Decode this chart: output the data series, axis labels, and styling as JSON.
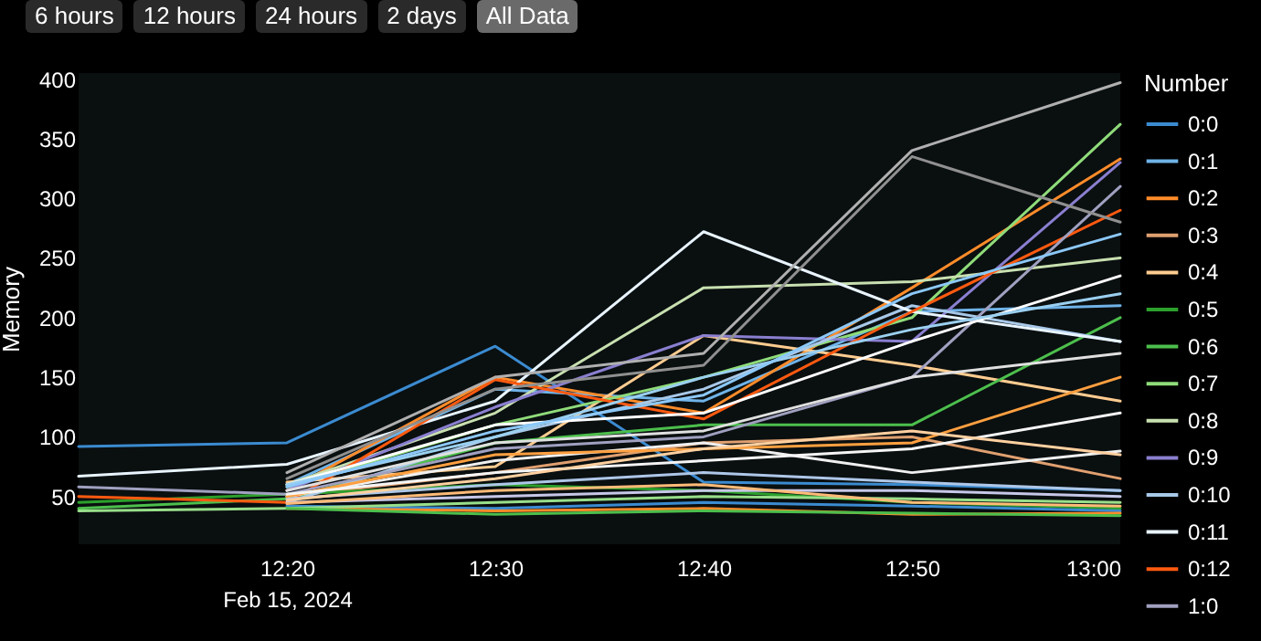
{
  "chart_data": {
    "type": "line",
    "ylabel": "Memory",
    "legend_title": "Number",
    "legend": "right",
    "grid": false,
    "annotations": [
      "6 hours",
      "12 hours",
      "24 hours",
      "2 days",
      "All Data"
    ],
    "x": [
      "2024-02-15T12:10",
      "2024-02-15T12:20",
      "2024-02-15T12:30",
      "2024-02-15T12:40",
      "2024-02-15T12:50",
      "2024-02-15T13:00"
    ],
    "xlim": [
      "2024-02-15T12:10",
      "2024-02-15T13:00"
    ],
    "xticks": [
      {
        "value": "2024-02-15T12:20",
        "label": "12:20\nFeb 15, 2024"
      },
      {
        "value": "2024-02-15T12:30",
        "label": "12:30"
      },
      {
        "value": "2024-02-15T12:40",
        "label": "12:40"
      },
      {
        "value": "2024-02-15T12:50",
        "label": "12:50"
      },
      {
        "value": "2024-02-15T13:00",
        "label": "13:00"
      }
    ],
    "ylim": [
      10,
      405
    ],
    "yticks": [
      50,
      100,
      150,
      200,
      250,
      300,
      350,
      400
    ],
    "series": [
      {
        "name": "0:0",
        "color": "#3b8bd0",
        "values": [
          92,
          95,
          176,
          62,
          60,
          55
        ]
      },
      {
        "name": "0:1",
        "color": "#6fb3e8",
        "values": [
          null,
          60,
          140,
          130,
          205,
          210
        ]
      },
      {
        "name": "0:2",
        "color": "#ff8c2a",
        "values": [
          null,
          55,
          150,
          120,
          225,
          333
        ]
      },
      {
        "name": "0:3",
        "color": "#e0a070",
        "values": [
          null,
          50,
          70,
          95,
          100,
          65
        ]
      },
      {
        "name": "0:4",
        "color": "#ffcc90",
        "values": [
          null,
          62,
          75,
          185,
          160,
          130
        ]
      },
      {
        "name": "0:5",
        "color": "#2ca02c",
        "values": [
          45,
          52,
          60,
          55,
          45,
          40
        ]
      },
      {
        "name": "0:6",
        "color": "#4cbf4c",
        "values": [
          40,
          48,
          95,
          110,
          110,
          200
        ]
      },
      {
        "name": "0:7",
        "color": "#8fdc7a",
        "values": [
          null,
          58,
          110,
          150,
          200,
          362
        ]
      },
      {
        "name": "0:8",
        "color": "#c8e0b0",
        "values": [
          null,
          60,
          120,
          225,
          230,
          250
        ]
      },
      {
        "name": "0:9",
        "color": "#8a7fd0",
        "values": [
          null,
          55,
          125,
          185,
          180,
          330
        ]
      },
      {
        "name": "0:10",
        "color": "#a8c8e8",
        "values": [
          null,
          45,
          100,
          140,
          210,
          180
        ]
      },
      {
        "name": "0:11",
        "color": "#e8f4ff",
        "values": [
          67,
          77,
          130,
          272,
          205,
          180
        ]
      },
      {
        "name": "0:12",
        "color": "#ff5a10",
        "values": [
          50,
          45,
          148,
          115,
          205,
          290
        ]
      },
      {
        "name": "1:0",
        "color": "#a0a0c0",
        "values": [
          58,
          52,
          90,
          100,
          150,
          310
        ]
      },
      {
        "color": "#b0b0b0",
        "values": [
          null,
          70,
          150,
          170,
          340,
          397
        ]
      },
      {
        "color": "#909090",
        "values": [
          null,
          65,
          140,
          160,
          335,
          280
        ]
      },
      {
        "color": "#ffffff",
        "values": [
          null,
          60,
          110,
          120,
          180,
          235
        ]
      },
      {
        "color": "#f0f0f0",
        "values": [
          null,
          50,
          80,
          95,
          70,
          88
        ]
      },
      {
        "color": "#3b8bd0",
        "values": [
          null,
          42,
          40,
          45,
          42,
          38
        ]
      },
      {
        "color": "#ff8c2a",
        "values": [
          null,
          40,
          38,
          40,
          35,
          36
        ]
      },
      {
        "color": "#98df8a",
        "values": [
          38,
          40,
          45,
          50,
          48,
          45
        ]
      },
      {
        "color": "#c7c7e8",
        "values": [
          null,
          45,
          50,
          55,
          55,
          50
        ]
      },
      {
        "color": "#aec7e8",
        "values": [
          null,
          48,
          60,
          70,
          62,
          55
        ]
      },
      {
        "color": "#ffbb78",
        "values": [
          null,
          44,
          55,
          60,
          45,
          42
        ]
      },
      {
        "color": "#ffa040",
        "values": [
          null,
          50,
          85,
          90,
          95,
          150
        ]
      },
      {
        "color": "#e0e0e0",
        "values": [
          null,
          55,
          95,
          105,
          150,
          170
        ]
      },
      {
        "color": "#9bd0f0",
        "values": [
          null,
          60,
          100,
          150,
          190,
          220
        ]
      },
      {
        "color": "#f5f5f5",
        "values": [
          null,
          52,
          70,
          80,
          90,
          120
        ]
      },
      {
        "color": "#8cc8f8",
        "values": [
          null,
          58,
          105,
          135,
          220,
          270
        ]
      },
      {
        "color": "#ffd0a0",
        "values": [
          null,
          47,
          65,
          90,
          105,
          85
        ]
      },
      {
        "color": "#4cbf4c",
        "values": [
          null,
          40,
          35,
          38,
          36,
          34
        ]
      }
    ]
  }
}
